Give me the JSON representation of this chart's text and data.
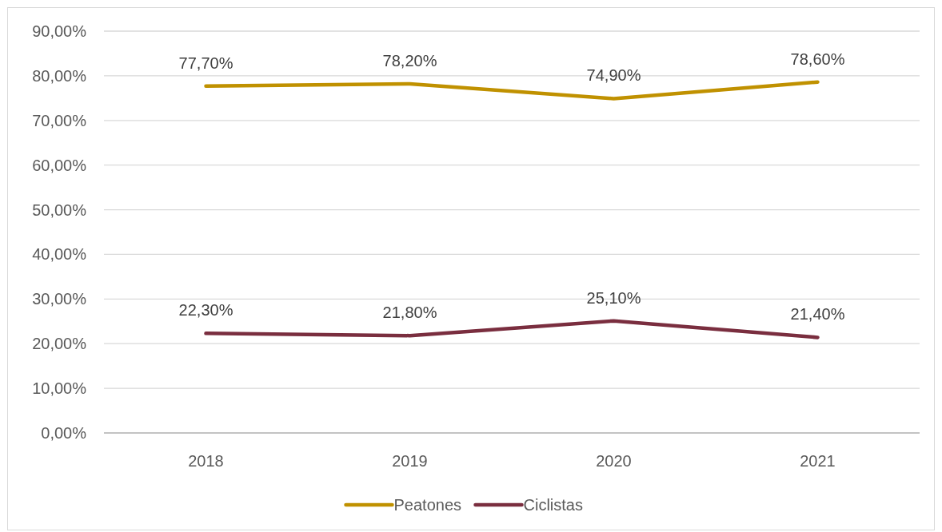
{
  "chart_data": {
    "type": "line",
    "categories": [
      "2018",
      "2019",
      "2020",
      "2021"
    ],
    "series": [
      {
        "name": "Peatones",
        "color": "#c09100",
        "values": [
          77.7,
          78.2,
          74.9,
          78.6
        ],
        "value_labels": [
          "77,70%",
          "78,20%",
          "74,90%",
          "78,60%"
        ]
      },
      {
        "name": "Ciclistas",
        "color": "#7a2e3f",
        "values": [
          22.3,
          21.8,
          25.1,
          21.4
        ],
        "value_labels": [
          "22,30%",
          "21,80%",
          "25,10%",
          "21,40%"
        ]
      }
    ],
    "ylim": [
      0,
      90
    ],
    "yticks": [
      {
        "value": 0,
        "label": "0,00%"
      },
      {
        "value": 10,
        "label": "10,00%"
      },
      {
        "value": 20,
        "label": "20,00%"
      },
      {
        "value": 30,
        "label": "30,00%"
      },
      {
        "value": 40,
        "label": "40,00%"
      },
      {
        "value": 50,
        "label": "50,00%"
      },
      {
        "value": 60,
        "label": "60,00%"
      },
      {
        "value": 70,
        "label": "70,00%"
      },
      {
        "value": 80,
        "label": "80,00%"
      },
      {
        "value": 90,
        "label": "90,00%"
      }
    ],
    "grid": "y",
    "legend": "bottom",
    "marker": "none",
    "line_style": "solid"
  }
}
